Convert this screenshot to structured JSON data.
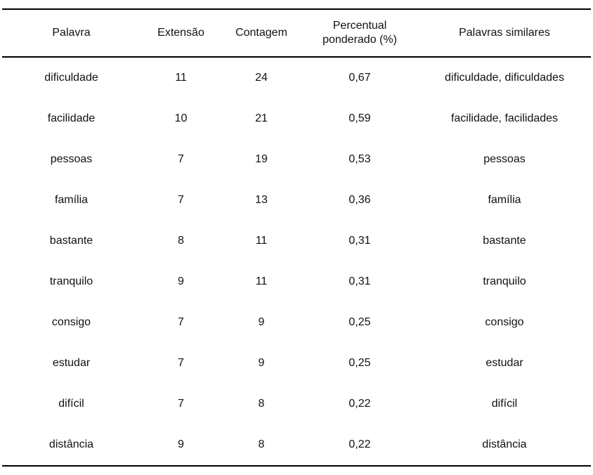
{
  "chart_data": {
    "type": "table",
    "columns": [
      "Palavra",
      "Extensão",
      "Contagem",
      "Percentual ponderado (%)",
      "Palavras similares"
    ],
    "rows": [
      [
        "dificuldade",
        "11",
        "24",
        "0,67",
        "dificuldade, dificuldades"
      ],
      [
        "facilidade",
        "10",
        "21",
        "0,59",
        "facilidade, facilidades"
      ],
      [
        "pessoas",
        "7",
        "19",
        "0,53",
        "pessoas"
      ],
      [
        "família",
        "7",
        "13",
        "0,36",
        "família"
      ],
      [
        "bastante",
        "8",
        "11",
        "0,31",
        "bastante"
      ],
      [
        "tranquilo",
        "9",
        "11",
        "0,31",
        "tranquilo"
      ],
      [
        "consigo",
        "7",
        "9",
        "0,25",
        "consigo"
      ],
      [
        "estudar",
        "7",
        "9",
        "0,25",
        "estudar"
      ],
      [
        "difícil",
        "7",
        "8",
        "0,22",
        "difícil"
      ],
      [
        "distância",
        "9",
        "8",
        "0,22",
        "distância"
      ]
    ]
  },
  "colors": {
    "text": "#111111",
    "rule": "#000000",
    "background": "#ffffff"
  }
}
